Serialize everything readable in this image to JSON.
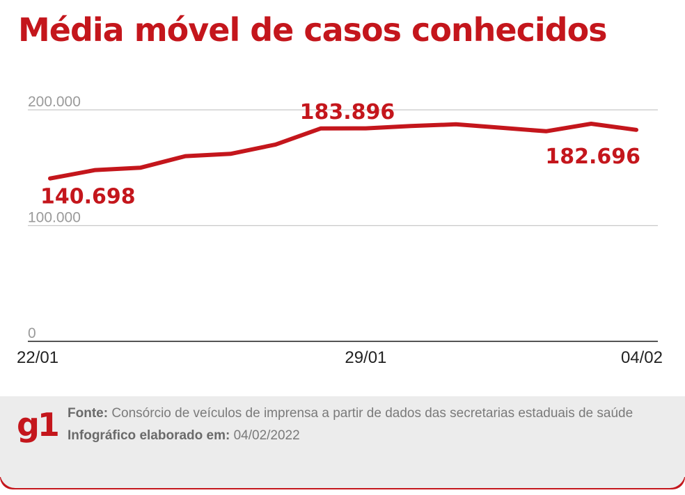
{
  "header": {
    "title": "Média móvel de casos conhecidos"
  },
  "colors": {
    "accent": "#c4161c",
    "grid": "#c8c8c8",
    "axis": "#555555",
    "tick_text": "#9a9a9a",
    "footer_bg": "#ececec",
    "footer_bar": "#c4161c"
  },
  "chart_data": {
    "type": "line",
    "title": "Média móvel de casos conhecidos",
    "x": [
      "22/01",
      "23/01",
      "24/01",
      "25/01",
      "26/01",
      "27/01",
      "28/01",
      "29/01",
      "30/01",
      "31/01",
      "01/02",
      "02/02",
      "03/02",
      "04/02"
    ],
    "x_tick_labels": [
      "22/01",
      "29/01",
      "04/02"
    ],
    "y_tick_labels": [
      "200.000",
      "100.000",
      "0"
    ],
    "ylim": [
      0,
      200000
    ],
    "grid": true,
    "series": [
      {
        "values": [
          140698,
          148000,
          150000,
          160000,
          162000,
          170000,
          183896,
          184000,
          186000,
          187500,
          184500,
          181500,
          188000,
          182696
        ]
      }
    ],
    "annotations": [
      {
        "text": "140.698",
        "index": 0
      },
      {
        "text": "183.896",
        "index": 6
      },
      {
        "text": "182.696",
        "index": 13
      }
    ]
  },
  "footer": {
    "logo": "g1",
    "source_label": "Fonte:",
    "source_text": "Consórcio de veículos de imprensa a partir de dados das secretarias estaduais de saúde",
    "date_label": "Infográfico elaborado em:",
    "date_text": "04/02/2022"
  }
}
